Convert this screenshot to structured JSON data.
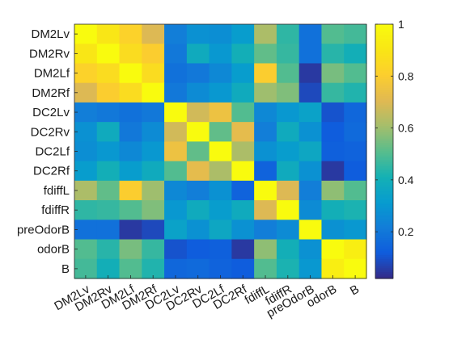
{
  "chart_data": {
    "type": "heatmap",
    "title": "",
    "xlabel": "",
    "ylabel": "",
    "labels": [
      "DM2Lv",
      "DM2Rv",
      "DM2Lf",
      "DM2Rf",
      "DC2Lv",
      "DC2Rv",
      "DC2Lf",
      "DC2Rf",
      "fdiffL",
      "fdiffR",
      "preOdorB",
      "odorB",
      "B"
    ],
    "colormap": "parula",
    "clim": [
      0.02,
      1.0
    ],
    "colorbar": {
      "ticks": [
        0.2,
        0.4,
        0.6,
        0.8,
        1
      ],
      "tick_labels": [
        "0.2",
        "0.4",
        "0.6",
        "0.8",
        "1"
      ]
    },
    "matrix": [
      [
        1.0,
        0.9,
        0.82,
        0.7,
        0.22,
        0.28,
        0.27,
        0.32,
        0.62,
        0.45,
        0.18,
        0.5,
        0.48
      ],
      [
        0.9,
        1.0,
        0.86,
        0.8,
        0.2,
        0.38,
        0.3,
        0.4,
        0.52,
        0.46,
        0.18,
        0.44,
        0.4
      ],
      [
        0.82,
        0.86,
        1.0,
        0.86,
        0.18,
        0.2,
        0.25,
        0.32,
        0.8,
        0.5,
        0.05,
        0.55,
        0.5
      ],
      [
        0.7,
        0.8,
        0.86,
        1.0,
        0.2,
        0.26,
        0.3,
        0.38,
        0.6,
        0.56,
        0.08,
        0.46,
        0.43
      ],
      [
        0.22,
        0.2,
        0.18,
        0.2,
        1.0,
        0.68,
        0.75,
        0.5,
        0.25,
        0.3,
        0.34,
        0.1,
        0.15
      ],
      [
        0.28,
        0.38,
        0.2,
        0.26,
        0.68,
        1.0,
        0.52,
        0.72,
        0.22,
        0.38,
        0.28,
        0.12,
        0.16
      ],
      [
        0.27,
        0.3,
        0.25,
        0.3,
        0.75,
        0.52,
        1.0,
        0.62,
        0.28,
        0.32,
        0.36,
        0.13,
        0.14
      ],
      [
        0.32,
        0.4,
        0.32,
        0.38,
        0.5,
        0.72,
        0.62,
        1.0,
        0.14,
        0.38,
        0.28,
        0.05,
        0.12
      ],
      [
        0.62,
        0.52,
        0.8,
        0.6,
        0.25,
        0.22,
        0.28,
        0.14,
        1.0,
        0.7,
        0.22,
        0.58,
        0.5
      ],
      [
        0.45,
        0.46,
        0.5,
        0.56,
        0.3,
        0.38,
        0.32,
        0.38,
        0.7,
        1.0,
        0.26,
        0.4,
        0.42
      ],
      [
        0.18,
        0.18,
        0.05,
        0.08,
        0.34,
        0.28,
        0.36,
        0.28,
        0.22,
        0.26,
        1.0,
        0.28,
        0.3
      ],
      [
        0.5,
        0.44,
        0.55,
        0.46,
        0.1,
        0.12,
        0.13,
        0.05,
        0.58,
        0.4,
        0.28,
        1.0,
        0.94
      ],
      [
        0.48,
        0.4,
        0.5,
        0.43,
        0.15,
        0.16,
        0.14,
        0.12,
        0.5,
        0.42,
        0.3,
        0.94,
        1.0
      ]
    ]
  }
}
